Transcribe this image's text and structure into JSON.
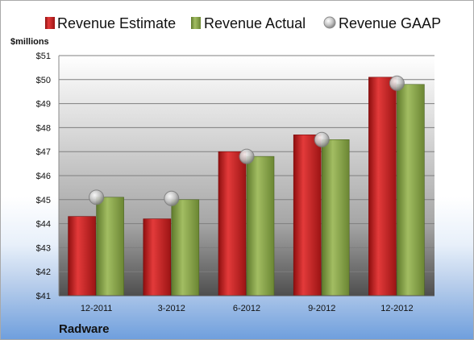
{
  "chart_data": {
    "type": "bar",
    "title": "",
    "unit_label": "$millions",
    "company": "Radware",
    "categories": [
      "12-2011",
      "3-2012",
      "6-2012",
      "9-2012",
      "12-2012"
    ],
    "series": [
      {
        "name": "Revenue Estimate",
        "kind": "bar",
        "values": [
          44.3,
          44.2,
          47.0,
          47.7,
          50.1
        ],
        "color": "#cc1f1f"
      },
      {
        "name": "Revenue Actual",
        "kind": "bar",
        "values": [
          45.1,
          45.0,
          46.8,
          47.5,
          49.8
        ],
        "color": "#8aa64a"
      },
      {
        "name": "Revenue GAAP",
        "kind": "marker",
        "values": [
          45.1,
          45.05,
          46.8,
          47.5,
          49.85
        ],
        "color": "#c0c0c0"
      }
    ],
    "y_ticks": [
      "$41",
      "$42",
      "$43",
      "$44",
      "$45",
      "$46",
      "$47",
      "$48",
      "$49",
      "$50",
      "$51"
    ],
    "ylim": [
      41,
      51
    ],
    "legend_position": "top",
    "grid": true
  }
}
